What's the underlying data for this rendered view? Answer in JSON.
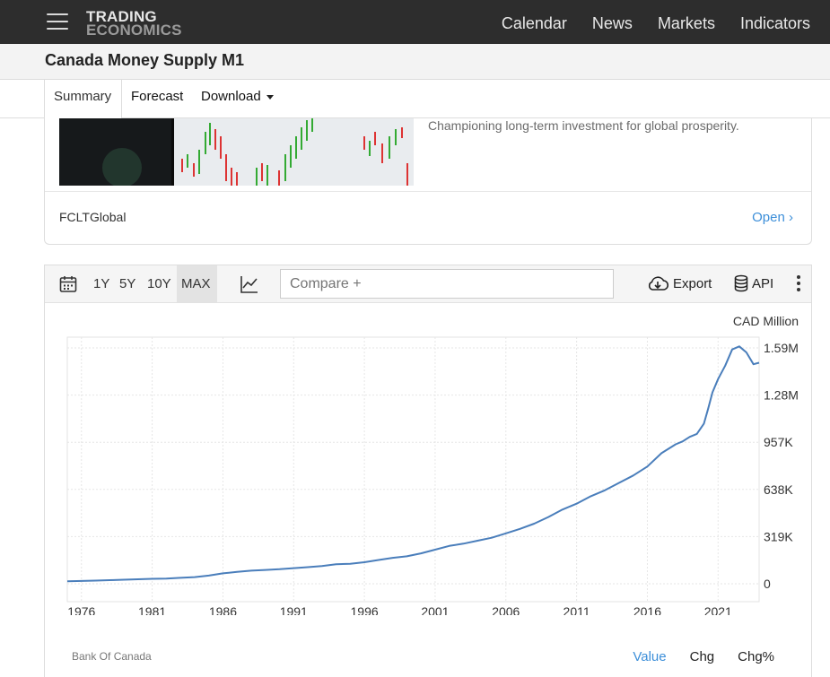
{
  "header": {
    "logo_line1": "TRADING",
    "logo_line2": "ECONOMICS",
    "nav": [
      "Calendar",
      "News",
      "Markets",
      "Indicators"
    ]
  },
  "page": {
    "title": "Canada Money Supply M1"
  },
  "tabs": {
    "summary": "Summary",
    "forecast": "Forecast",
    "download": "Download"
  },
  "ad": {
    "tagline": "Championing long-term investment for global prosperity.",
    "source": "FCLTGlobal",
    "open_label": "Open"
  },
  "toolbar": {
    "ranges": [
      "1Y",
      "5Y",
      "10Y",
      "MAX"
    ],
    "active_range": "MAX",
    "compare_placeholder": "Compare +",
    "export_label": "Export",
    "api_label": "API"
  },
  "footer": {
    "credit": "Bank Of Canada",
    "value_tab": "Value",
    "chg_tab": "Chg",
    "chgpct_tab": "Chg%"
  },
  "colors": {
    "line": "#4a7ebb",
    "accent": "#3d8fd9",
    "topbar": "#2d2d2d"
  },
  "chart_data": {
    "type": "line",
    "unit": "CAD Million",
    "x_ticks": [
      "1976",
      "1981",
      "1986",
      "1991",
      "1996",
      "2001",
      "2006",
      "2011",
      "2016",
      "2021"
    ],
    "y_ticks": [
      "0",
      "319K",
      "638K",
      "957K",
      "1.28M",
      "1.59M"
    ],
    "ylim": [
      0,
      1590000
    ],
    "xlim": [
      1975,
      2023.9
    ],
    "grid": true,
    "series": [
      {
        "x": [
          1975,
          1976,
          1977,
          1978,
          1979,
          1980,
          1981,
          1982,
          1983,
          1984,
          1985,
          1986,
          1987,
          1988,
          1989,
          1990,
          1991,
          1992,
          1993,
          1994,
          1995,
          1996,
          1997,
          1998,
          1999,
          2000,
          2001,
          2002,
          2003,
          2004,
          2005,
          2006,
          2007,
          2008,
          2009,
          2010,
          2011,
          2012,
          2013,
          2014,
          2015,
          2016,
          2017,
          2018,
          2018.5,
          2019,
          2019.5,
          2020,
          2020.3,
          2020.6,
          2021,
          2021.5,
          2022,
          2022.5,
          2023,
          2023.5,
          2023.9
        ],
        "values": [
          17000,
          19000,
          21000,
          24000,
          27000,
          30000,
          33000,
          35000,
          40000,
          45000,
          55000,
          70000,
          80000,
          88000,
          93000,
          98000,
          105000,
          112000,
          120000,
          132000,
          135000,
          145000,
          160000,
          175000,
          185000,
          205000,
          230000,
          255000,
          270000,
          290000,
          310000,
          340000,
          370000,
          405000,
          450000,
          500000,
          540000,
          590000,
          630000,
          680000,
          730000,
          790000,
          880000,
          940000,
          960000,
          990000,
          1010000,
          1080000,
          1180000,
          1290000,
          1380000,
          1470000,
          1580000,
          1600000,
          1560000,
          1480000,
          1490000
        ]
      }
    ]
  }
}
